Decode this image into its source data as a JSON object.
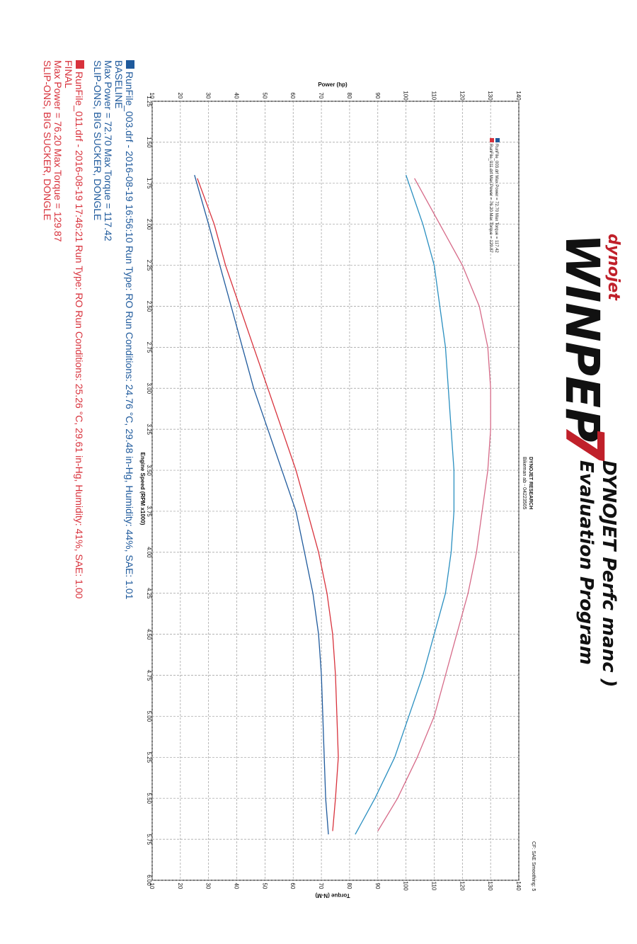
{
  "header": {
    "brand_small": "dynojet",
    "brand_logo": "WINPEP",
    "brand_number": "7",
    "title_line1": "DYNOJET Perfc manc )",
    "title_line2": "Evaluation Program",
    "company": "DYNOJET RESEARCH",
    "customer": "Bikeman ab - 04223505",
    "cf_note": "CF: SAE Smoothing: 5"
  },
  "colors": {
    "baseline": "#1f5a9c",
    "baseline_torque": "#2a8fc0",
    "final": "#d8323c",
    "final_torque": "#d66a88",
    "grid": "#9a9a9a"
  },
  "inner_legend": {
    "line1": "RunFile_003.drf Max Power = 72.70   Max Torque = 117.42",
    "line2": "RunFile_011.drf Max Power = 76.20   Max Torque = 129.87"
  },
  "legend": [
    {
      "line1": "RunFile_003.drf - 2016-08-19 16:56:10  Run Type: RO  Run Conditions: 24.76 °C, 29.48 in-Hg,  Humidity:  44%,  SAE: 1.01",
      "line2": "BASELINE",
      "line3": "Max Power = 72.70  Max Torque = 117.42",
      "line4": "SLIP-ONS, BIG SUCKER, DONGLE"
    },
    {
      "line1": "RunFile_011.drf - 2016-08-19 17:46:21  Run Type: RO  Run Conditions: 25.26 °C, 29.61 in-Hg,  Humidity:  41%,  SAE: 1.00",
      "line2": "FINAL",
      "line3": "Max Power = 76.20  Max Torque = 129.87",
      "line4": "SLIP-ONS, BIG SUCKER, DONGLE"
    }
  ],
  "chart_data": {
    "type": "line",
    "title": "",
    "xlabel": "Engine Speed (RPM x1000)",
    "ylabel_left": "Power (hp)",
    "ylabel_right": "Torque (N-M)",
    "xlim": [
      1.25,
      6.0
    ],
    "ylim": [
      10,
      140
    ],
    "x_ticks": [
      "1.25",
      "1.50",
      "1.75",
      "2.00",
      "2.25",
      "2.50",
      "2.75",
      "3.00",
      "3.25",
      "3.50",
      "3.75",
      "4.00",
      "4.25",
      "4.50",
      "4.75",
      "5.00",
      "5.25",
      "5.50",
      "5.75",
      "6.00"
    ],
    "y_ticks": [
      "10",
      "20",
      "30",
      "40",
      "50",
      "60",
      "70",
      "80",
      "90",
      "100",
      "110",
      "120",
      "130",
      "140"
    ],
    "grid": true,
    "rotated": true,
    "series": [
      {
        "name": "RunFile_003.drf Max Power = 72.70",
        "kind": "power",
        "color": "#1f5a9c",
        "x": [
          1.7,
          2.0,
          2.25,
          2.5,
          2.75,
          3.0,
          3.25,
          3.5,
          3.75,
          4.0,
          4.25,
          4.5,
          4.75,
          5.0,
          5.25,
          5.5,
          5.72
        ],
        "y": [
          25,
          30,
          34,
          38,
          42,
          46,
          51,
          56,
          61,
          64,
          67,
          69,
          70,
          70.5,
          71,
          71.5,
          72.5
        ]
      },
      {
        "name": "RunFile_011.drf Max Power = 76.20",
        "kind": "power",
        "color": "#d8323c",
        "x": [
          1.72,
          2.0,
          2.25,
          2.5,
          2.75,
          3.0,
          3.25,
          3.5,
          3.75,
          4.0,
          4.25,
          4.5,
          4.75,
          5.0,
          5.25,
          5.5,
          5.7
        ],
        "y": [
          26,
          32,
          36,
          41,
          46,
          51,
          56,
          61,
          65,
          69,
          72,
          74,
          75,
          75.5,
          76,
          75,
          74
        ]
      },
      {
        "name": "RunFile_003.drf Max Torque = 117.42",
        "kind": "torque",
        "color": "#2a8fc0",
        "x": [
          1.7,
          2.0,
          2.25,
          2.5,
          2.75,
          3.0,
          3.25,
          3.5,
          3.75,
          4.0,
          4.25,
          4.5,
          4.75,
          5.0,
          5.25,
          5.5,
          5.72
        ],
        "y": [
          100,
          106,
          110,
          112,
          114,
          115,
          116,
          117,
          117,
          116,
          114,
          110,
          106,
          101,
          96,
          89,
          82
        ]
      },
      {
        "name": "RunFile_011.drf Max Torque = 129.87",
        "kind": "torque",
        "color": "#d66a88",
        "x": [
          1.72,
          2.0,
          2.25,
          2.5,
          2.75,
          3.0,
          3.25,
          3.5,
          3.75,
          4.0,
          4.25,
          4.5,
          4.75,
          5.0,
          5.25,
          5.5,
          5.7
        ],
        "y": [
          103,
          112,
          120,
          126,
          129,
          130,
          130,
          129,
          127,
          125,
          122,
          118,
          114,
          110,
          104,
          97,
          90
        ]
      }
    ]
  }
}
